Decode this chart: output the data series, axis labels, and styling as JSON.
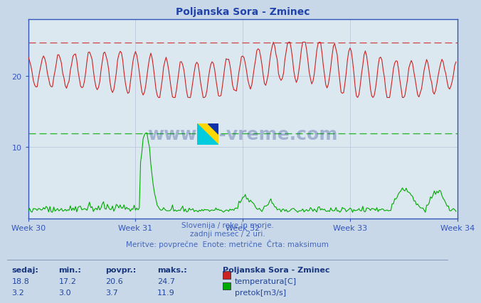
{
  "title": "Poljanska Sora - Zminec",
  "bg_color": "#c8d8e8",
  "plot_bg_color": "#dce8f0",
  "grid_color": "#b0bcd0",
  "title_color": "#2244aa",
  "axis_color": "#3355bb",
  "tick_color": "#3355bb",
  "label_color": "#4466bb",
  "temp_color": "#cc2222",
  "flow_color": "#00aa00",
  "dashed_red": "#cc2222",
  "dashed_green": "#00aa00",
  "xlim": [
    0,
    336
  ],
  "ylim": [
    0,
    28
  ],
  "yticks": [
    10,
    20
  ],
  "week_ticks": [
    0,
    84,
    168,
    252,
    336
  ],
  "week_labels": [
    "Week 30",
    "Week 31",
    "Week 32",
    "Week 33",
    "Week 34"
  ],
  "temp_max": 24.7,
  "temp_avg": 20.6,
  "temp_min": 17.2,
  "temp_current": 18.8,
  "flow_max": 11.9,
  "flow_avg": 3.7,
  "flow_min": 3.0,
  "flow_current": 3.2,
  "subtitle1": "Slovenija / reke in morje.",
  "subtitle2": "zadnji mesec / 2 uri.",
  "subtitle3": "Meritve: povprečne  Enote: metrične  Črta: maksimum",
  "legend_title": "Poljanska Sora - Zminec",
  "legend_temp": "temperatura[C]",
  "legend_flow": "pretok[m3/s]",
  "col_sedaj": "sedaj:",
  "col_min": "min.:",
  "col_povpr": "povpr.:",
  "col_maks": "maks.:",
  "watermark": "www.si-vreme.com"
}
